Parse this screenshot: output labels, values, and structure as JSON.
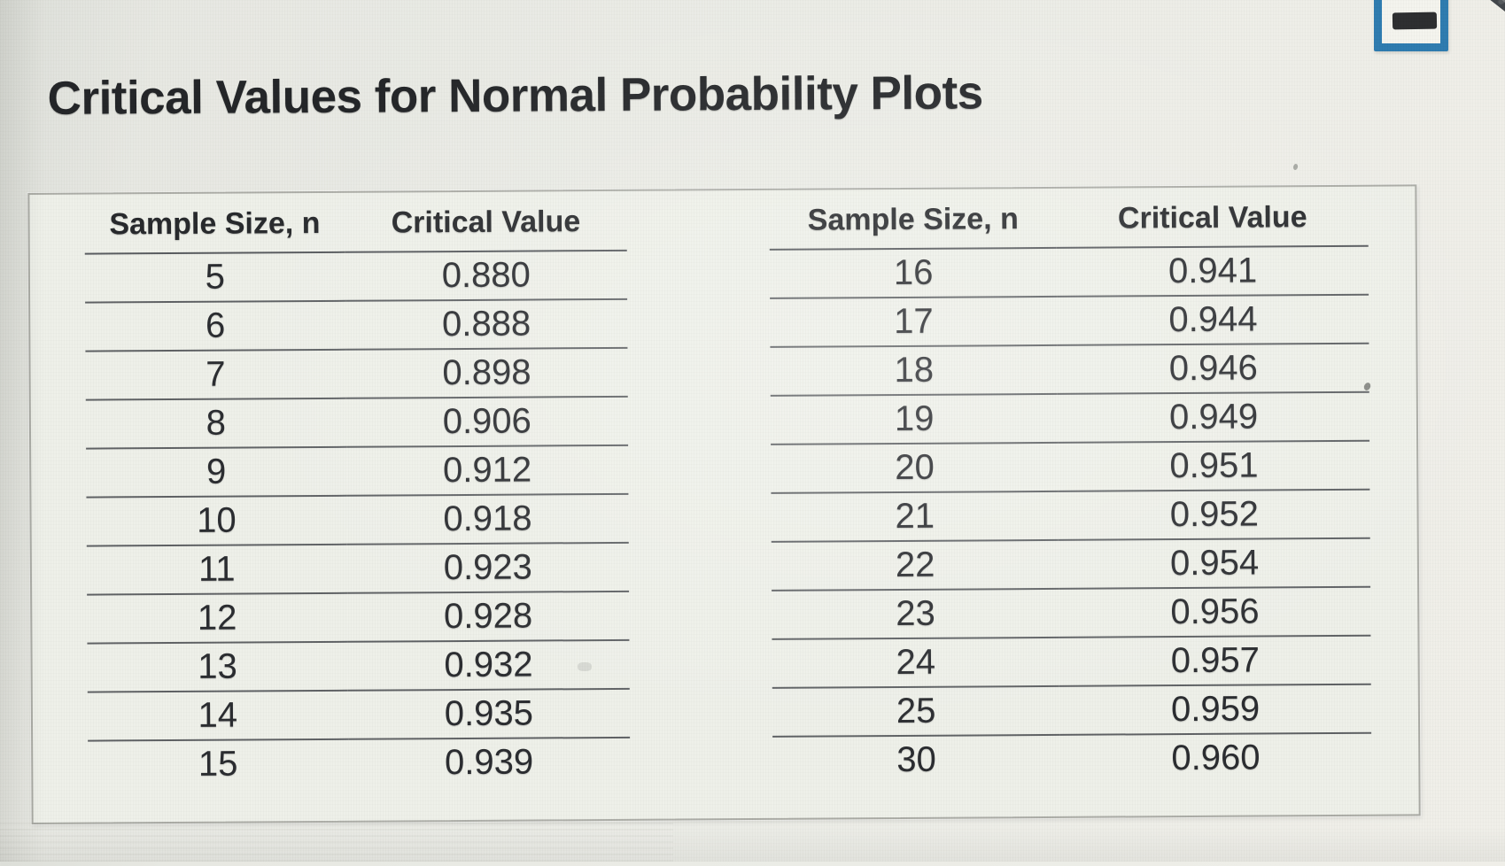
{
  "page": {
    "title": "Critical Values for Normal Probability Plots"
  },
  "window_controls": {
    "minimize_icon": "minus-bar",
    "accent_color": "#2878ae"
  },
  "table": {
    "headers": [
      "Sample Size, n",
      "Critical Value"
    ],
    "left_rows": [
      [
        "5",
        "0.880"
      ],
      [
        "6",
        "0.888"
      ],
      [
        "7",
        "0.898"
      ],
      [
        "8",
        "0.906"
      ],
      [
        "9",
        "0.912"
      ],
      [
        "10",
        "0.918"
      ],
      [
        "11",
        "0.923"
      ],
      [
        "12",
        "0.928"
      ],
      [
        "13",
        "0.932"
      ],
      [
        "14",
        "0.935"
      ],
      [
        "15",
        "0.939"
      ]
    ],
    "right_rows": [
      [
        "16",
        "0.941"
      ],
      [
        "17",
        "0.944"
      ],
      [
        "18",
        "0.946"
      ],
      [
        "19",
        "0.949"
      ],
      [
        "20",
        "0.951"
      ],
      [
        "21",
        "0.952"
      ],
      [
        "22",
        "0.954"
      ],
      [
        "23",
        "0.956"
      ],
      [
        "24",
        "0.957"
      ],
      [
        "25",
        "0.959"
      ],
      [
        "30",
        "0.960"
      ]
    ]
  },
  "chart_data": {
    "type": "table",
    "title": "Critical Values for Normal Probability Plots",
    "columns": [
      "Sample Size, n",
      "Critical Value"
    ],
    "rows": [
      [
        5,
        0.88
      ],
      [
        6,
        0.888
      ],
      [
        7,
        0.898
      ],
      [
        8,
        0.906
      ],
      [
        9,
        0.912
      ],
      [
        10,
        0.918
      ],
      [
        11,
        0.923
      ],
      [
        12,
        0.928
      ],
      [
        13,
        0.932
      ],
      [
        14,
        0.935
      ],
      [
        15,
        0.939
      ],
      [
        16,
        0.941
      ],
      [
        17,
        0.944
      ],
      [
        18,
        0.946
      ],
      [
        19,
        0.949
      ],
      [
        20,
        0.951
      ],
      [
        21,
        0.952
      ],
      [
        22,
        0.954
      ],
      [
        23,
        0.956
      ],
      [
        24,
        0.957
      ],
      [
        25,
        0.959
      ],
      [
        30,
        0.96
      ]
    ]
  }
}
